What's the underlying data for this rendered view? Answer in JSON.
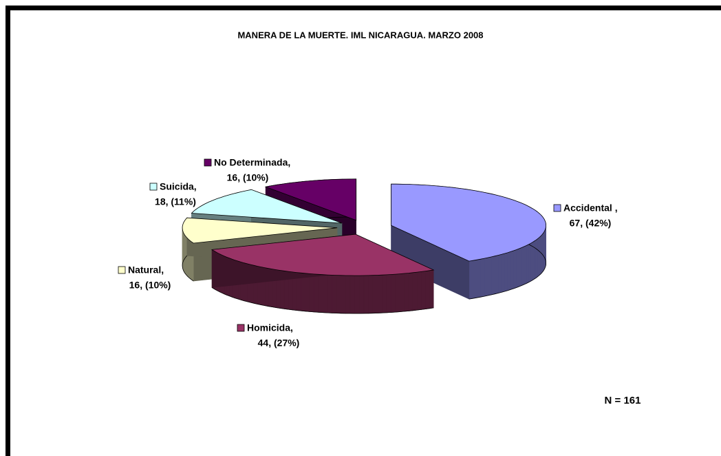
{
  "chart_data": {
    "type": "pie3d",
    "title": "MANERA DE LA MUERTE. IML NICARAGUA. MARZO 2008",
    "categories": [
      "Accidental ,",
      "Homicida,",
      "Natural,",
      "Suicida,",
      "No Determinada,"
    ],
    "values": [
      67,
      44,
      16,
      18,
      16
    ],
    "value_labels": [
      "67, (42%)",
      "44, (27%)",
      "16, (10%)",
      "18, (11%)",
      "16, (10%)"
    ],
    "colors": [
      "#9999ff",
      "#993366",
      "#ffffcc",
      "#ccffff",
      "#660066"
    ],
    "annotation": "N = 161"
  }
}
